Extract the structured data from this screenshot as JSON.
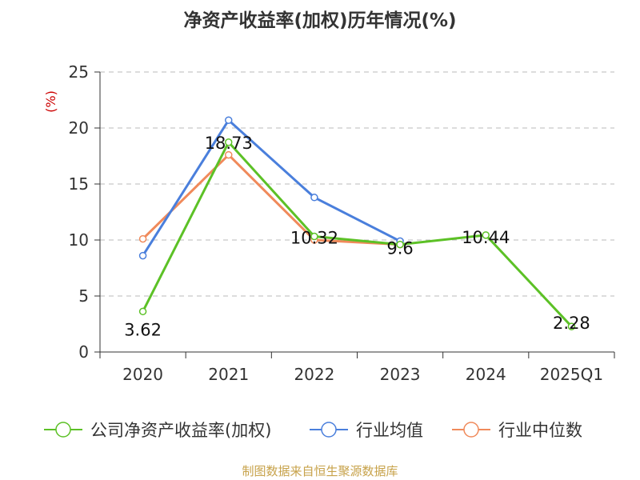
{
  "chart_data": {
    "type": "line",
    "title": "净资产收益率(加权)历年情况(%)",
    "ylabel": "(%)",
    "xlabel": "",
    "categories": [
      "2020",
      "2021",
      "2022",
      "2023",
      "2024",
      "2025Q1"
    ],
    "ylim": [
      0,
      25
    ],
    "yticks": [
      0,
      5,
      10,
      15,
      20,
      25
    ],
    "grid": true,
    "legend_position": "bottom",
    "series": [
      {
        "name": "公司净资产收益率(加权)",
        "color": "#5cc126",
        "values": [
          3.62,
          18.73,
          10.32,
          9.6,
          10.44,
          2.28
        ],
        "labels": [
          "3.62",
          "18.73",
          "10.32",
          "9.6",
          "10.44",
          "2.28"
        ]
      },
      {
        "name": "行业均值",
        "color": "#4a7fdc",
        "values": [
          8.6,
          20.7,
          13.8,
          9.9,
          null,
          null
        ]
      },
      {
        "name": "行业中位数",
        "color": "#f08a5b",
        "values": [
          10.1,
          17.6,
          10.0,
          9.6,
          null,
          null
        ]
      }
    ]
  },
  "source": "制图数据来自恒生聚源数据库"
}
